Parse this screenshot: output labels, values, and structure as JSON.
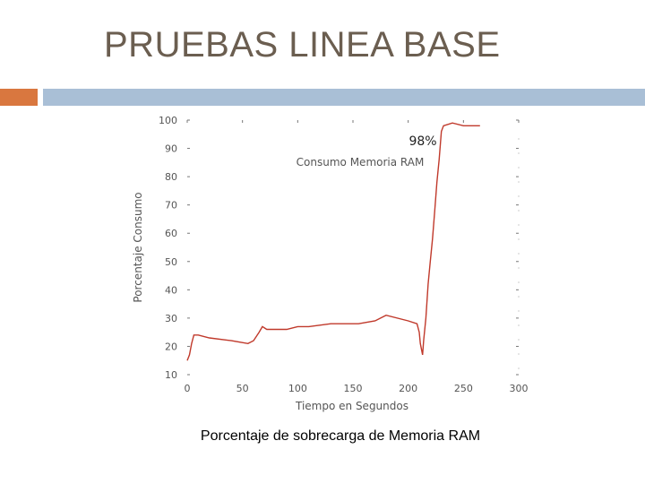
{
  "slide": {
    "title": "PRUEBAS LINEA BASE",
    "caption": "Porcentaje de sobrecarga de Memoria RAM",
    "accent_colors": {
      "orange": "#d9773f",
      "blue": "#a9bfd6"
    }
  },
  "chart_data": {
    "type": "line",
    "title": "Consumo Memoria RAM",
    "xlabel": "Tiempo en Segundos",
    "ylabel": "Porcentaje Consumo",
    "annotation": "98%",
    "xlim": [
      0,
      300
    ],
    "ylim": [
      10,
      100
    ],
    "xticks": [
      0,
      50,
      100,
      150,
      200,
      250,
      300
    ],
    "yticks": [
      10,
      20,
      30,
      40,
      50,
      60,
      70,
      80,
      90,
      100
    ],
    "line_color": "#c0392b",
    "series": [
      {
        "x": [
          0,
          2,
          4,
          6,
          10,
          20,
          40,
          55,
          60,
          65,
          68,
          72,
          90,
          100,
          110,
          130,
          150,
          155,
          170,
          175,
          180,
          200,
          208,
          210,
          211,
          213,
          214,
          216,
          218,
          220,
          222,
          224,
          226,
          228,
          230,
          232,
          240,
          250,
          260,
          265
        ],
        "y": [
          15,
          17,
          21,
          24,
          24,
          23,
          22,
          21,
          22,
          25,
          27,
          26,
          26,
          27,
          27,
          28,
          28,
          28,
          29,
          30,
          31,
          29,
          28,
          25,
          21,
          17,
          22,
          30,
          42,
          50,
          58,
          68,
          78,
          86,
          96,
          98,
          99,
          98,
          98,
          98
        ]
      }
    ]
  }
}
